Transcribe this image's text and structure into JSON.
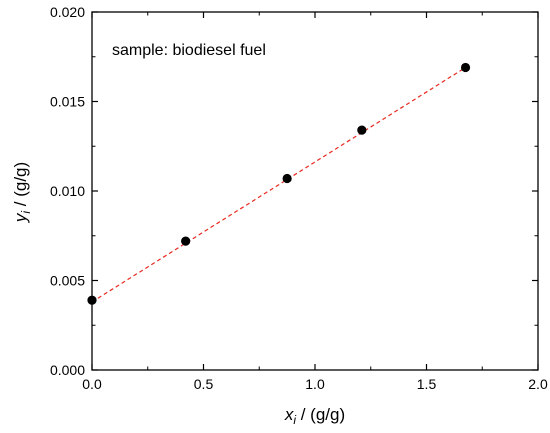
{
  "chart_data": {
    "type": "scatter",
    "annotation": "sample: biodiesel fuel",
    "xlabel": {
      "var": "x",
      "sub": "i",
      "unit": " / (g/g)"
    },
    "ylabel": {
      "var": "y",
      "sub": "i",
      "unit": " / (g/g)"
    },
    "xlim": [
      0.0,
      2.0
    ],
    "ylim": [
      0.0,
      0.02
    ],
    "xticks": [
      "0.0",
      "0.5",
      "1.0",
      "1.5",
      "2.0"
    ],
    "yticks": [
      "0.000",
      "0.005",
      "0.010",
      "0.015",
      "0.020"
    ],
    "grid": false,
    "series": [
      {
        "marker": "circle",
        "color": "#000000",
        "x": [
          0.0,
          0.42,
          0.875,
          1.21,
          1.675
        ],
        "y": [
          0.0039,
          0.0072,
          0.0107,
          0.0134,
          0.0169
        ]
      }
    ],
    "fit_line": {
      "style": "dashed",
      "color": "#e8281e",
      "x": [
        0.0,
        1.675
      ],
      "y": [
        0.0038,
        0.0169
      ]
    }
  }
}
